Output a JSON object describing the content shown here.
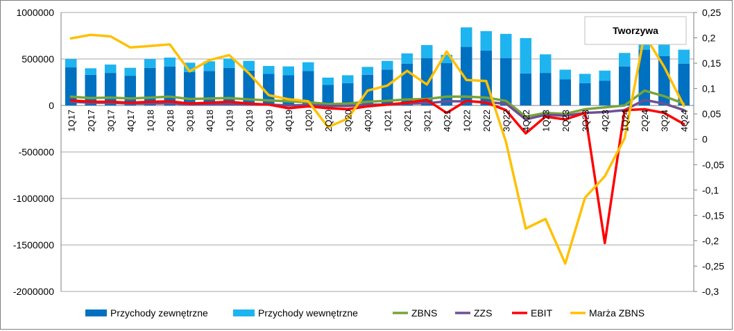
{
  "chart_data": {
    "type": "bar",
    "title": "Tworzywa",
    "categories": [
      "1Q17",
      "2Q17",
      "3Q17",
      "4Q17",
      "1Q18",
      "2Q18",
      "3Q18",
      "4Q18",
      "1Q19",
      "2Q19",
      "3Q19",
      "4Q19",
      "1Q20",
      "2Q20",
      "3Q20",
      "4Q20",
      "1Q21",
      "2Q21",
      "3Q21",
      "4Q21",
      "1Q22",
      "2Q22",
      "3Q22",
      "4Q22",
      "1Q23",
      "2Q23",
      "3Q23",
      "4Q23",
      "1Q24",
      "2Q24",
      "3Q24",
      "4Q24"
    ],
    "y_left": {
      "min": -2000000,
      "max": 1000000,
      "step": 500000,
      "tick_labels": [
        "1000000",
        "500000",
        "0",
        "-500000",
        "-1000000",
        "-1500000",
        "-2000000"
      ]
    },
    "y_right": {
      "min": -0.3,
      "max": 0.25,
      "step": 0.05,
      "tick_labels": [
        "0,25",
        "0,2",
        "0,15",
        "0,1",
        "0,05",
        "0",
        "-0,05",
        "-0,1",
        "-0,15",
        "-0,2",
        "-0,25",
        "-0,3"
      ]
    },
    "grid": true,
    "legend_position": "bottom",
    "series": [
      {
        "name": "Przychody zewnętrzne",
        "kind": "bar",
        "axis": "left",
        "color": "#0070c0",
        "values": [
          410000,
          330000,
          350000,
          320000,
          405000,
          420000,
          360000,
          370000,
          405000,
          375000,
          340000,
          325000,
          370000,
          220000,
          240000,
          330000,
          385000,
          450000,
          510000,
          455000,
          630000,
          590000,
          510000,
          345000,
          350000,
          280000,
          240000,
          265000,
          420000,
          600000,
          530000,
          450000
        ]
      },
      {
        "name": "Przychody wewnętrzne",
        "kind": "bar",
        "axis": "left",
        "color": "#1eb4f0",
        "values": [
          90000,
          70000,
          90000,
          85000,
          95000,
          95000,
          100000,
          105000,
          100000,
          105000,
          85000,
          95000,
          95000,
          80000,
          85000,
          85000,
          95000,
          110000,
          140000,
          90000,
          210000,
          210000,
          260000,
          380000,
          200000,
          105000,
          100000,
          110000,
          145000,
          155000,
          170000,
          150000
        ]
      },
      {
        "name": "ZBNS",
        "kind": "line",
        "axis": "left",
        "color": "#77a33a",
        "values": [
          95000,
          80000,
          85000,
          75000,
          85000,
          95000,
          70000,
          75000,
          80000,
          65000,
          55000,
          45000,
          35000,
          15000,
          20000,
          40000,
          50000,
          65000,
          70000,
          95000,
          95000,
          85000,
          50000,
          -120000,
          -80000,
          -90000,
          -40000,
          -20000,
          0,
          160000,
          100000,
          20000
        ]
      },
      {
        "name": "ZZS",
        "kind": "line",
        "axis": "left",
        "color": "#6f4f93",
        "values": [
          40000,
          30000,
          30000,
          20000,
          20000,
          25000,
          10000,
          15000,
          15000,
          10000,
          10000,
          0,
          5000,
          -5000,
          -5000,
          10000,
          10000,
          20000,
          25000,
          45000,
          45000,
          35000,
          20000,
          -150000,
          -100000,
          -110000,
          -80000,
          -70000,
          -50000,
          60000,
          20000,
          -50000
        ]
      },
      {
        "name": "EBIT",
        "kind": "line",
        "axis": "left",
        "color": "#ff0000",
        "values": [
          55000,
          40000,
          40000,
          30000,
          40000,
          45000,
          20000,
          30000,
          40000,
          20000,
          10000,
          -30000,
          -10000,
          -30000,
          -40000,
          -10000,
          10000,
          30000,
          60000,
          -80000,
          50000,
          30000,
          -50000,
          -300000,
          -120000,
          -150000,
          -80000,
          -1480000,
          -50000,
          -40000,
          -80000,
          -200000
        ]
      },
      {
        "name": "Marża ZBNS",
        "kind": "line",
        "axis": "right",
        "color": "#ffc000",
        "values": [
          0.199,
          0.206,
          0.203,
          0.181,
          0.184,
          0.187,
          0.134,
          0.156,
          0.166,
          0.13,
          0.087,
          0.079,
          0.075,
          0.024,
          0.041,
          0.096,
          0.106,
          0.135,
          0.108,
          0.173,
          0.117,
          0.115,
          -0.005,
          -0.176,
          -0.157,
          -0.245,
          -0.115,
          -0.073,
          0.002,
          0.206,
          0.143,
          0.066
        ]
      }
    ]
  }
}
